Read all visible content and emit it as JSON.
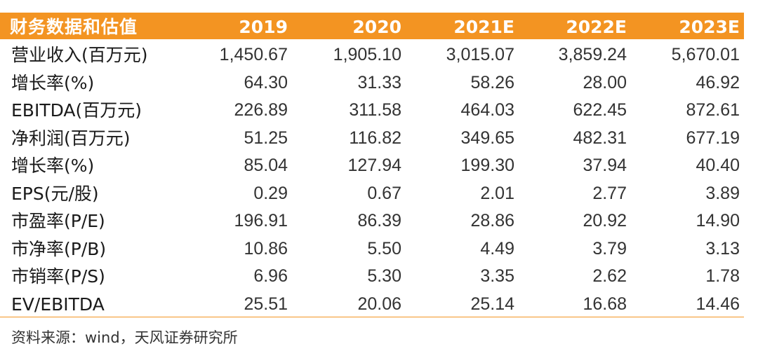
{
  "table": {
    "title": "财务数据和估值",
    "years": [
      "2019",
      "2020",
      "2021E",
      "2022E",
      "2023E"
    ],
    "rows": [
      {
        "label": "营业收入(百万元)",
        "values": [
          "1,450.67",
          "1,905.10",
          "3,015.07",
          "3,859.24",
          "5,670.01"
        ]
      },
      {
        "label": "增长率(%)",
        "values": [
          "64.30",
          "31.33",
          "58.26",
          "28.00",
          "46.92"
        ]
      },
      {
        "label": "EBITDA(百万元)",
        "values": [
          "226.89",
          "311.58",
          "464.03",
          "622.45",
          "872.61"
        ]
      },
      {
        "label": "净利润(百万元)",
        "values": [
          "51.25",
          "116.82",
          "349.65",
          "482.31",
          "677.19"
        ]
      },
      {
        "label": "增长率(%)",
        "values": [
          "85.04",
          "127.94",
          "199.30",
          "37.94",
          "40.40"
        ]
      },
      {
        "label": "EPS(元/股)",
        "values": [
          "0.29",
          "0.67",
          "2.01",
          "2.77",
          "3.89"
        ]
      },
      {
        "label": "市盈率(P/E)",
        "values": [
          "196.91",
          "86.39",
          "28.86",
          "20.92",
          "14.90"
        ]
      },
      {
        "label": "市净率(P/B)",
        "values": [
          "10.86",
          "5.50",
          "4.49",
          "3.79",
          "3.13"
        ]
      },
      {
        "label": "市销率(P/S)",
        "values": [
          "6.96",
          "5.30",
          "3.35",
          "2.62",
          "1.78"
        ]
      },
      {
        "label": "EV/EBITDA",
        "values": [
          "25.51",
          "20.06",
          "25.14",
          "16.68",
          "14.46"
        ]
      }
    ]
  },
  "source": "资料来源：wind，天风证券研究所",
  "colors": {
    "accent": "#f39422",
    "header_text": "#ffffff",
    "body_text": "#333333"
  }
}
